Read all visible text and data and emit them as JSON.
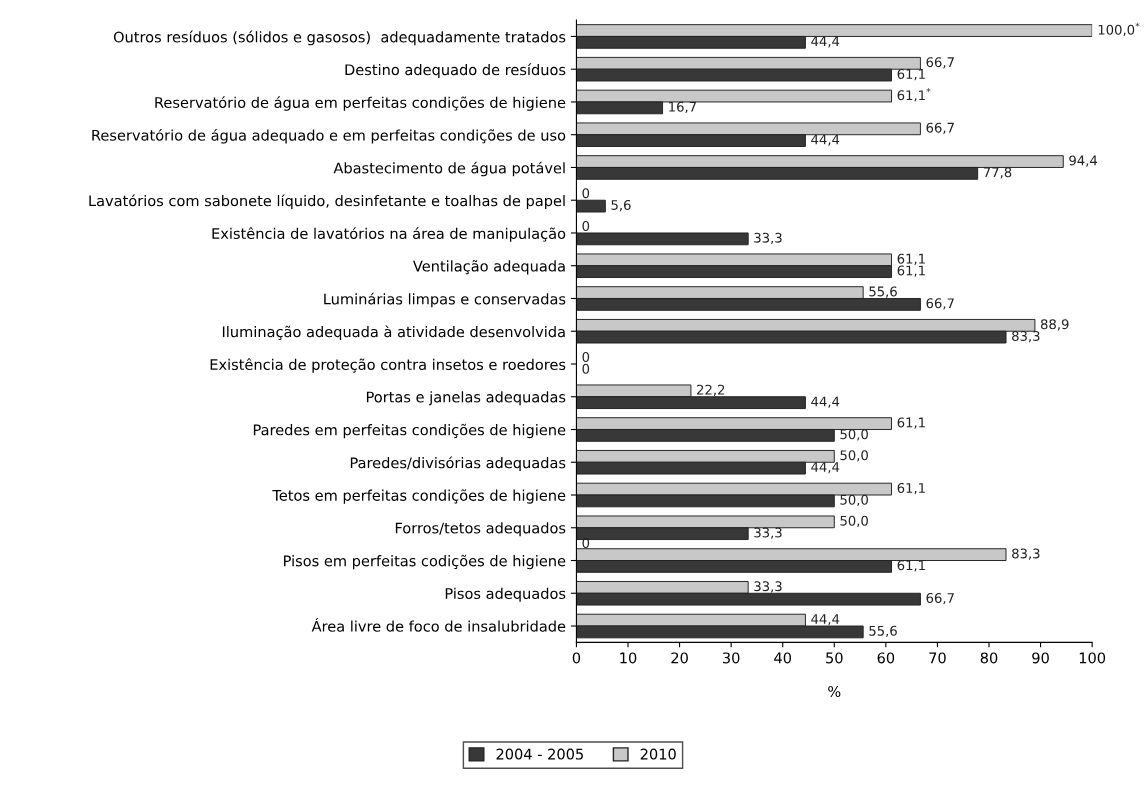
{
  "chart_data": {
    "type": "bar",
    "orientation": "horizontal",
    "xlabel": "%",
    "categories": [
      "Outros resíduos (sólidos e gasosos)  adequadamente tratados",
      "Destino adequado de resíduos",
      "Reservatório de água em perfeitas condições de higiene",
      "Reservatório de água adequado e em perfeitas condições de uso",
      "Abastecimento de água potável",
      "Lavatórios com sabonete líquido, desinfetante e toalhas de papel",
      "Existência de lavatórios na área de manipulação",
      "Ventilação adequada",
      "Luminárias limpas e conservadas",
      "Iluminação adequada à atividade desenvolvida",
      "Existência de proteção contra insetos e roedores",
      "Portas e janelas adequadas",
      "Paredes em perfeitas condições de higiene",
      "Paredes/divisórias adequadas",
      "Tetos em perfeitas condições de higiene",
      "Forros/tetos adequados",
      "Pisos em perfeitas codições de higiene",
      "Pisos adequados",
      "Área livre de foco de insalubridade"
    ],
    "series": [
      {
        "name": "2010",
        "color": "#c8c8c8",
        "values": [
          100.0,
          66.7,
          61.1,
          66.7,
          94.4,
          0,
          0,
          61.1,
          55.6,
          88.9,
          0,
          22.2,
          61.1,
          50.0,
          61.1,
          50.0,
          83.3,
          33.3,
          44.4
        ],
        "value_labels": [
          "100,0$^{*}$",
          "66,7",
          "61,1$^{*}$",
          "66,7",
          "94,4",
          "0",
          "0",
          "61,1",
          "55,6",
          "88,9",
          "0",
          "22,2",
          "61,1",
          "50,0",
          "61,1",
          "50,0",
          "83,3",
          "33,3",
          "44,4"
        ]
      },
      {
        "name": "2004 - 2005",
        "color": "#383838",
        "values": [
          44.4,
          61.1,
          16.7,
          44.4,
          77.8,
          5.6,
          33.3,
          61.1,
          66.7,
          83.3,
          0,
          44.4,
          50.0,
          44.4,
          50.0,
          33.3,
          61.1,
          66.7,
          55.6
        ],
        "value_labels": [
          "44,4",
          "61,1",
          "16,7",
          "44,4",
          "77,8",
          "5,6",
          "33,3",
          "61,1",
          "66,7",
          "83,3",
          "0",
          "44,4",
          "50,0",
          "44,4",
          "50,0",
          "33,3",
          "61,1",
          "66,7",
          "55,6"
        ]
      }
    ],
    "annotations": [
      {
        "text": "0",
        "x": 0,
        "y": "Pisos em perfeitas codições de higiene"
      }
    ],
    "xlim": [
      0,
      100
    ],
    "xticks": [
      0,
      10,
      20,
      30,
      40,
      50,
      60,
      70,
      80,
      90,
      100
    ],
    "grid": false,
    "legend": "bottom"
  }
}
